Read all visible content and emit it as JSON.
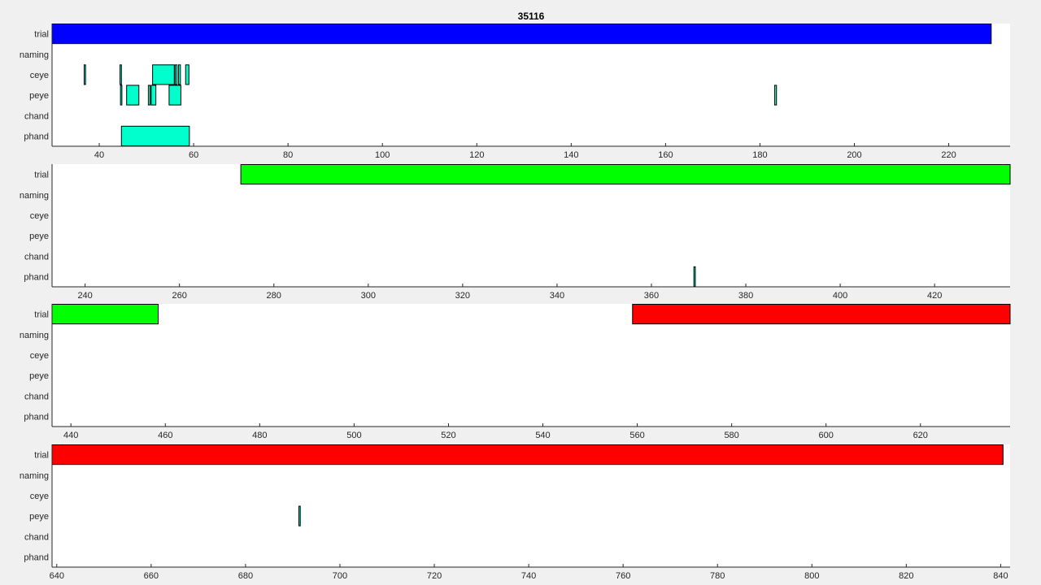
{
  "chart_data": {
    "type": "timeline",
    "title": "35116",
    "rows": [
      "trial",
      "naming",
      "ceye",
      "peye",
      "chand",
      "phand"
    ],
    "colors": {
      "trial_blue": "#0000ff",
      "trial_green": "#00ff00",
      "trial_red": "#ff0000",
      "event": "#00ffcc",
      "background": "#ffffff",
      "figure": "#f0f0f0"
    },
    "panels": [
      {
        "xlim": [
          30,
          233
        ],
        "ticks": [
          40,
          60,
          80,
          100,
          120,
          140,
          160,
          180,
          200,
          220
        ],
        "events": [
          {
            "row": "trial",
            "start": 30,
            "end": 229,
            "color": "trial_blue"
          },
          {
            "row": "ceye",
            "start": 36.8,
            "end": 37.1,
            "color": "event"
          },
          {
            "row": "ceye",
            "start": 44.4,
            "end": 44.7,
            "color": "event"
          },
          {
            "row": "ceye",
            "start": 51.3,
            "end": 55.9,
            "color": "event"
          },
          {
            "row": "ceye",
            "start": 56.1,
            "end": 56.5,
            "color": "event"
          },
          {
            "row": "ceye",
            "start": 56.8,
            "end": 57.2,
            "color": "event"
          },
          {
            "row": "ceye",
            "start": 58.3,
            "end": 59.0,
            "color": "event"
          },
          {
            "row": "peye",
            "start": 44.5,
            "end": 44.8,
            "color": "event"
          },
          {
            "row": "peye",
            "start": 45.8,
            "end": 48.4,
            "color": "event"
          },
          {
            "row": "peye",
            "start": 50.4,
            "end": 50.8,
            "color": "event"
          },
          {
            "row": "peye",
            "start": 51.0,
            "end": 52.0,
            "color": "event"
          },
          {
            "row": "peye",
            "start": 54.8,
            "end": 57.3,
            "color": "event"
          },
          {
            "row": "peye",
            "start": 183.1,
            "end": 183.5,
            "color": "event"
          },
          {
            "row": "phand",
            "start": 44.7,
            "end": 59.1,
            "color": "event"
          }
        ]
      },
      {
        "xlim": [
          233,
          436
        ],
        "ticks": [
          240,
          260,
          280,
          300,
          320,
          340,
          360,
          380,
          400,
          420
        ],
        "events": [
          {
            "row": "trial",
            "start": 273,
            "end": 436,
            "color": "trial_green"
          },
          {
            "row": "phand",
            "start": 369.0,
            "end": 369.3,
            "color": "event"
          }
        ]
      },
      {
        "xlim": [
          436,
          639
        ],
        "ticks": [
          440,
          460,
          480,
          500,
          520,
          540,
          560,
          580,
          600,
          620
        ],
        "events": [
          {
            "row": "trial",
            "start": 436,
            "end": 458.5,
            "color": "trial_green"
          },
          {
            "row": "trial",
            "start": 559,
            "end": 639,
            "color": "trial_red"
          }
        ]
      },
      {
        "xlim": [
          639,
          842
        ],
        "ticks": [
          640,
          660,
          680,
          700,
          720,
          740,
          760,
          780,
          800,
          820,
          840
        ],
        "events": [
          {
            "row": "trial",
            "start": 639,
            "end": 840.5,
            "color": "trial_red"
          },
          {
            "row": "peye",
            "start": 691.3,
            "end": 691.6,
            "color": "event"
          }
        ]
      }
    ]
  }
}
